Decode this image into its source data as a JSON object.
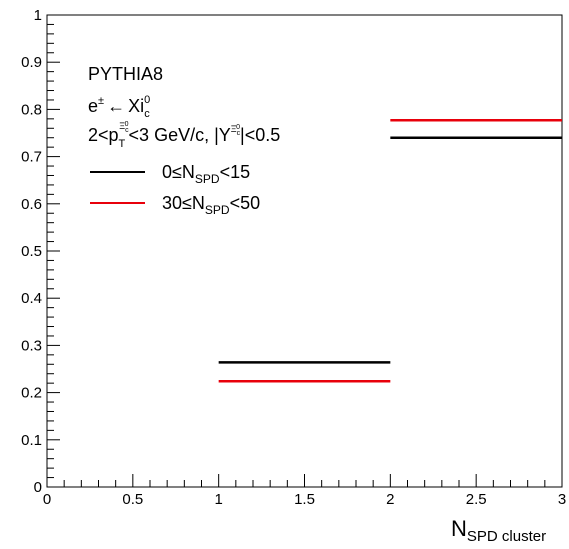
{
  "chart_data": {
    "type": "step",
    "xlabel": {
      "main": "N",
      "sub": "SPD cluster"
    },
    "ylabel": "",
    "xlim": [
      0,
      3
    ],
    "ylim": [
      0,
      1
    ],
    "x_ticks": [
      {
        "value": 0,
        "label": "0"
      },
      {
        "value": 0.5,
        "label": "0.5"
      },
      {
        "value": 1,
        "label": "1"
      },
      {
        "value": 1.5,
        "label": "1.5"
      },
      {
        "value": 2,
        "label": "2"
      },
      {
        "value": 2.5,
        "label": "2.5"
      },
      {
        "value": 3,
        "label": "3"
      }
    ],
    "y_ticks": [
      {
        "value": 0,
        "label": "0"
      },
      {
        "value": 0.1,
        "label": "0.1"
      },
      {
        "value": 0.2,
        "label": "0.2"
      },
      {
        "value": 0.3,
        "label": "0.3"
      },
      {
        "value": 0.4,
        "label": "0.4"
      },
      {
        "value": 0.5,
        "label": "0.5"
      },
      {
        "value": 0.6,
        "label": "0.6"
      },
      {
        "value": 0.7,
        "label": "0.7"
      },
      {
        "value": 0.8,
        "label": "0.8"
      },
      {
        "value": 0.9,
        "label": "0.9"
      },
      {
        "value": 1,
        "label": "1"
      }
    ],
    "grid": false,
    "annotations": {
      "generator": "PYTHIA8",
      "channel": {
        "lhs": "e",
        "lhs_sup": "±",
        "arrow": "←",
        "particle": "Xi",
        "particle_sub": "c",
        "particle_sup": "0"
      },
      "cuts": {
        "lo": "2<p",
        "pt_sub": "T",
        "pt_sup": "Ξ",
        "pt_sup_sub": "c",
        "pt_sup_sup": "0",
        "mid": "<3 GeV/c, |Y",
        "y_sup": "Ξ",
        "y_sup_sub": "c",
        "y_sup_sup": "0",
        "hi": "|<0.5"
      }
    },
    "series": [
      {
        "legend": {
          "pre": "0≤N",
          "sub": "SPD",
          "post": "<15"
        },
        "color": "#000000",
        "bins": [
          {
            "x0": 1,
            "x1": 2,
            "y": 0.264
          },
          {
            "x0": 2,
            "x1": 3,
            "y": 0.74
          }
        ]
      },
      {
        "legend": {
          "pre": "30≤N",
          "sub": "SPD",
          "post": "<50"
        },
        "color": "#e8000b",
        "bins": [
          {
            "x0": 1,
            "x1": 2,
            "y": 0.224
          },
          {
            "x0": 2,
            "x1": 3,
            "y": 0.777
          }
        ]
      }
    ]
  }
}
